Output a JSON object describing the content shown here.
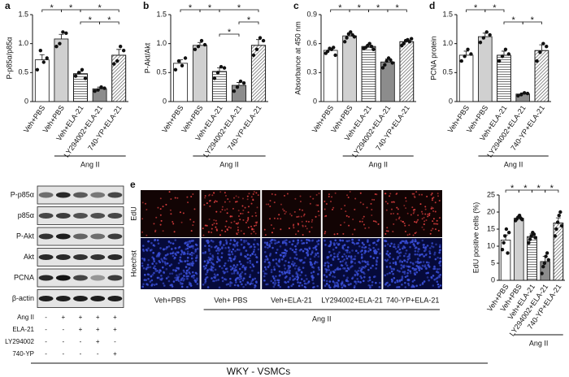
{
  "chart_data": [
    {
      "type": "bar",
      "panel": "a",
      "ylabel": "P-p85α/p85α",
      "categories": [
        "Veh+PBS",
        "Veh+PBS",
        "Veh+ELA-21",
        "LY294002+ELA-21",
        "740-YP+ELA-21"
      ],
      "group_label": "Ang II",
      "values": [
        0.72,
        1.08,
        0.48,
        0.22,
        0.8
      ],
      "errors": [
        0.09,
        0.08,
        0.04,
        0.03,
        0.1
      ],
      "points": [
        [
          0.55,
          0.88,
          0.68,
          0.75
        ],
        [
          0.95,
          1.0,
          1.2,
          1.18
        ],
        [
          0.44,
          0.5,
          0.55,
          0.4
        ],
        [
          0.18,
          0.2,
          0.25,
          0.23
        ],
        [
          0.65,
          0.7,
          0.95,
          0.88
        ]
      ],
      "colors": [
        "#ffffff",
        "#d0d0d0",
        "#ffffff",
        "#8c8c8c",
        "#ffffff"
      ],
      "patterns": [
        "none",
        "none",
        "horizontal",
        "none",
        "diagonal"
      ],
      "ylim": [
        0,
        1.5
      ],
      "yticks": [
        0,
        0.5,
        {
          "value": 1,
          "label": "1.0"
        },
        1.5
      ],
      "comparisons": [
        {
          "pair": [
            0,
            1
          ],
          "level": 0,
          "label": "*"
        },
        {
          "pair": [
            1,
            2
          ],
          "level": 0,
          "label": "*"
        },
        {
          "pair": [
            2,
            4
          ],
          "level": 0,
          "label": "*"
        },
        {
          "pair": [
            2,
            3
          ],
          "level": 1,
          "label": "*"
        },
        {
          "pair": [
            3,
            4
          ],
          "level": 1,
          "label": "*"
        }
      ]
    },
    {
      "type": "bar",
      "panel": "b",
      "ylabel": "P-Akt/Akt",
      "categories": [
        "Veh+PBS",
        "Veh+PBS",
        "Veh+ELA-21",
        "LY294002+ELA-21",
        "740-YP+ELA-21"
      ],
      "group_label": "Ang II",
      "values": [
        0.66,
        0.97,
        0.52,
        0.28,
        0.97
      ],
      "errors": [
        0.06,
        0.05,
        0.06,
        0.05,
        0.1
      ],
      "points": [
        [
          0.55,
          0.7,
          0.62,
          0.75
        ],
        [
          0.9,
          0.95,
          1.05,
          0.98
        ],
        [
          0.4,
          0.5,
          0.6,
          0.58
        ],
        [
          0.18,
          0.25,
          0.35,
          0.32
        ],
        [
          0.8,
          0.9,
          1.1,
          1.05
        ]
      ],
      "colors": [
        "#ffffff",
        "#d0d0d0",
        "#ffffff",
        "#8c8c8c",
        "#ffffff"
      ],
      "patterns": [
        "none",
        "none",
        "horizontal",
        "none",
        "diagonal"
      ],
      "ylim": [
        0,
        1.5
      ],
      "yticks": [
        0,
        0.5,
        {
          "value": 1,
          "label": "1.0"
        },
        1.5
      ],
      "comparisons": [
        {
          "pair": [
            0,
            1
          ],
          "level": 0,
          "label": "*"
        },
        {
          "pair": [
            1,
            2
          ],
          "level": 0,
          "label": "*"
        },
        {
          "pair": [
            2,
            4
          ],
          "level": 0,
          "label": "*"
        },
        {
          "pair": [
            3,
            4
          ],
          "level": 1,
          "label": "*"
        },
        {
          "pair": [
            2,
            3
          ],
          "level": 2,
          "label": "*"
        }
      ]
    },
    {
      "type": "bar",
      "panel": "c",
      "ylabel": "Absorbance at 450 nm",
      "categories": [
        "Veh+PBS",
        "Veh+PBS",
        "Veh+ELA-21",
        "LY294002+ELA-21",
        "740-YP+ELA-21"
      ],
      "group_label": "Ang II",
      "values": [
        0.53,
        0.68,
        0.57,
        0.41,
        0.62
      ],
      "errors": [
        0.02,
        0.03,
        0.02,
        0.03,
        0.02
      ],
      "points": [
        [
          0.5,
          0.52,
          0.55,
          0.54,
          0.56,
          0.48
        ],
        [
          0.62,
          0.66,
          0.7,
          0.72,
          0.69,
          0.67
        ],
        [
          0.55,
          0.56,
          0.58,
          0.6,
          0.57,
          0.54
        ],
        [
          0.35,
          0.38,
          0.42,
          0.45,
          0.43,
          0.4
        ],
        [
          0.58,
          0.6,
          0.63,
          0.64,
          0.62,
          0.65
        ]
      ],
      "colors": [
        "#ffffff",
        "#d0d0d0",
        "#ffffff",
        "#8c8c8c",
        "#ffffff"
      ],
      "patterns": [
        "none",
        "none",
        "horizontal",
        "none",
        "diagonal"
      ],
      "ylim": [
        0,
        0.9
      ],
      "yticks": [
        0,
        0.3,
        0.6,
        0.9
      ],
      "comparisons": [
        {
          "pair": [
            0,
            1
          ],
          "level": 0,
          "label": "*"
        },
        {
          "pair": [
            1,
            2
          ],
          "level": 0,
          "label": "*"
        },
        {
          "pair": [
            2,
            3
          ],
          "level": 0,
          "label": "*"
        },
        {
          "pair": [
            3,
            4
          ],
          "level": 0,
          "label": "*"
        }
      ]
    },
    {
      "type": "bar",
      "panel": "d",
      "ylabel": "PCNA protein",
      "categories": [
        "Veh+PBS",
        "Veh+PBS",
        "Veh+ELA-21",
        "LY294002+ELA-21",
        "740-YP+ELA-21"
      ],
      "group_label": "Ang II",
      "values": [
        0.8,
        1.12,
        0.8,
        0.13,
        0.88
      ],
      "errors": [
        0.07,
        0.06,
        0.07,
        0.02,
        0.1
      ],
      "points": [
        [
          0.7,
          0.78,
          0.9,
          0.82
        ],
        [
          1.02,
          1.1,
          1.2,
          1.15
        ],
        [
          0.7,
          0.78,
          0.9,
          0.82
        ],
        [
          0.1,
          0.12,
          0.15,
          0.14
        ],
        [
          0.7,
          0.85,
          1.0,
          0.95
        ]
      ],
      "colors": [
        "#ffffff",
        "#d0d0d0",
        "#ffffff",
        "#8c8c8c",
        "#ffffff"
      ],
      "patterns": [
        "none",
        "none",
        "horizontal",
        "none",
        "diagonal"
      ],
      "ylim": [
        0,
        1.5
      ],
      "yticks": [
        0,
        0.5,
        {
          "value": 1,
          "label": "1.0"
        },
        1.5
      ],
      "comparisons": [
        {
          "pair": [
            0,
            1
          ],
          "level": 0,
          "label": "*"
        },
        {
          "pair": [
            1,
            2
          ],
          "level": 0,
          "label": "*"
        },
        {
          "pair": [
            2,
            3
          ],
          "level": 1,
          "label": "*"
        },
        {
          "pair": [
            3,
            4
          ],
          "level": 1,
          "label": "*"
        }
      ]
    },
    {
      "type": "bar",
      "ylabel": "EdU positive cells (%)",
      "categories": [
        "Veh+PBS",
        "Veh+PBS",
        "Veh+ELA-21",
        "LY294002+ELA-21",
        "740-YP+ELA-21"
      ],
      "group_label": "Ang II",
      "values": [
        11.8,
        18.2,
        12.8,
        5.5,
        16.8
      ],
      "errors": [
        1.5,
        0.5,
        0.8,
        1.5,
        1.5
      ],
      "points": [
        [
          9,
          11,
          13,
          15,
          8,
          14
        ],
        [
          17.5,
          18,
          18.5,
          19,
          18.2,
          17.8
        ],
        [
          11,
          12,
          13,
          14,
          13.5,
          12.5
        ],
        [
          2,
          4,
          5,
          7,
          8,
          6
        ],
        [
          13,
          15,
          17,
          19,
          20,
          16
        ]
      ],
      "colors": [
        "#ffffff",
        "#d0d0d0",
        "#ffffff",
        "#8c8c8c",
        "#ffffff"
      ],
      "patterns": [
        "none",
        "none",
        "horizontal",
        "none",
        "diagonal"
      ],
      "ylim": [
        0,
        25
      ],
      "yticks": [
        0,
        5,
        10,
        15,
        20,
        25
      ],
      "comparisons": [
        {
          "pair": [
            0,
            1
          ],
          "level": 0,
          "label": "*"
        },
        {
          "pair": [
            1,
            2
          ],
          "level": 0,
          "label": "*"
        },
        {
          "pair": [
            2,
            3
          ],
          "level": 0,
          "label": "*"
        },
        {
          "pair": [
            3,
            4
          ],
          "level": 0,
          "label": "*"
        }
      ]
    }
  ],
  "blot": {
    "proteins": [
      "P-p85α",
      "p85α",
      "P-Akt",
      "Akt",
      "PCNA",
      "β-actin"
    ],
    "treatments": [
      {
        "name": "Ang II",
        "signs": [
          "-",
          "+",
          "+",
          "+",
          "+"
        ]
      },
      {
        "name": "ELA-21",
        "signs": [
          "-",
          "-",
          "+",
          "+",
          "+"
        ]
      },
      {
        "name": "LY294002",
        "signs": [
          "-",
          "-",
          "-",
          "+",
          "-"
        ]
      },
      {
        "name": "740-YP",
        "signs": [
          "-",
          "-",
          "-",
          "-",
          "+"
        ]
      }
    ]
  },
  "micrographs": {
    "panel": "e",
    "rows": [
      "EdU",
      "Hoechst"
    ],
    "columns": [
      "Veh+PBS",
      "Veh+ PBS",
      "Veh+ELA-21",
      "LY294002+ELA-21",
      "740-YP+ELA-21"
    ],
    "group_label": "Ang II"
  },
  "footer": "WKY - VSMCs"
}
